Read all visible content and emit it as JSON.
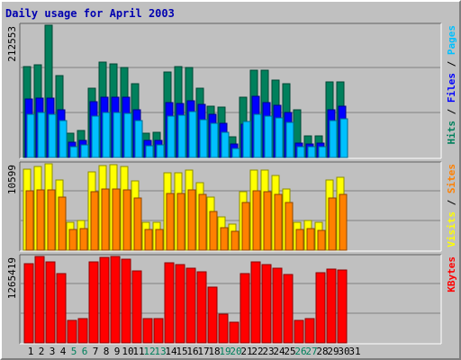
{
  "title": "Daily usage for April 2003",
  "chart_data": {
    "type": "bar",
    "title": "Daily usage for April 2003",
    "days": [
      "1",
      "2",
      "3",
      "4",
      "5",
      "6",
      "7",
      "8",
      "9",
      "10",
      "11",
      "12",
      "13",
      "14",
      "15",
      "16",
      "17",
      "18",
      "19",
      "20",
      "21",
      "22",
      "23",
      "24",
      "25",
      "26",
      "27",
      "28",
      "29",
      "30",
      "31"
    ],
    "weekend_days": [
      "5",
      "6",
      "12",
      "13",
      "19",
      "20",
      "26",
      "27"
    ],
    "panels": [
      {
        "id": "hits",
        "max_label": "212553",
        "max": 212553,
        "right_label": [
          "Hits",
          "Files",
          "Pages"
        ],
        "right_label_colors": [
          "#00805c",
          "#0000ff",
          "#00c0ff"
        ],
        "series": [
          {
            "name": "Hits",
            "color": "#00805c",
            "values": [
              146000,
              149000,
              212553,
              131000,
              39000,
              43000,
              112000,
              153000,
              151000,
              145000,
              118000,
              39000,
              40000,
              138000,
              146000,
              144000,
              112000,
              82000,
              81000,
              33000,
              97000,
              140000,
              140000,
              125000,
              118000,
              77000,
              35000,
              34000,
              121000,
              122000,
              0
            ]
          },
          {
            "name": "Files",
            "color": "#0000ff",
            "values": [
              94000,
              95000,
              95000,
              76000,
              25000,
              27000,
              90000,
              97000,
              97000,
              97000,
              77000,
              27000,
              27000,
              88000,
              87000,
              91000,
              86000,
              69000,
              55000,
              22000,
              53000,
              98000,
              88000,
              84000,
              73000,
              23000,
              22000,
              23000,
              77000,
              83000,
              0
            ]
          },
          {
            "name": "Pages",
            "color": "#00c0ff",
            "values": [
              70000,
              72000,
              70000,
              59000,
              18000,
              20000,
              66000,
              73000,
              73000,
              71000,
              59000,
              19000,
              20000,
              67000,
              68000,
              74000,
              61000,
              55000,
              41000,
              15000,
              58000,
              70000,
              66000,
              63000,
              56000,
              17000,
              17000,
              17000,
              59000,
              62000,
              0
            ]
          }
        ]
      },
      {
        "id": "visits",
        "max_label": "10599",
        "max": 10599,
        "right_label": [
          "Visits",
          "Sites"
        ],
        "right_label_colors": [
          "#ffff00",
          "#ff8000"
        ],
        "series": [
          {
            "name": "Visits",
            "color": "#ffff00",
            "values": [
              9950,
              10300,
              10599,
              8650,
              3450,
              3650,
              9600,
              10400,
              10450,
              10300,
              8550,
              3400,
              3400,
              9500,
              9450,
              9850,
              8300,
              6550,
              4050,
              3150,
              7150,
              9800,
              9850,
              9200,
              7550,
              3450,
              3650,
              3400,
              8650,
              8900,
              0
            ]
          },
          {
            "name": "Sites",
            "color": "#ff8000",
            "values": [
              7300,
              7450,
              7450,
              6500,
              2550,
              2600,
              7200,
              7550,
              7500,
              7400,
              6450,
              2500,
              2550,
              7000,
              7000,
              7450,
              6850,
              4750,
              2750,
              2350,
              5900,
              7300,
              7200,
              6850,
              5900,
              2550,
              2700,
              2450,
              6400,
              6850,
              0
            ]
          }
        ]
      },
      {
        "id": "kbytes",
        "max_label": "1265419",
        "max": 1265419,
        "right_label": [
          "KBytes"
        ],
        "right_label_colors": [
          "#ff0000"
        ],
        "series": [
          {
            "name": "KBytes",
            "color": "#ff0000",
            "values": [
              1160000,
              1265419,
              1180000,
              1020000,
              330000,
              360000,
              1180000,
              1250000,
              1265419,
              1225000,
              1050000,
              360000,
              360000,
              1170000,
              1145000,
              1100000,
              1045000,
              820000,
              420000,
              300000,
              1010000,
              1190000,
              1150000,
              1100000,
              1000000,
              330000,
              350000,
              1030000,
              1075000,
              1070000,
              0
            ]
          }
        ]
      }
    ],
    "grid": true
  }
}
